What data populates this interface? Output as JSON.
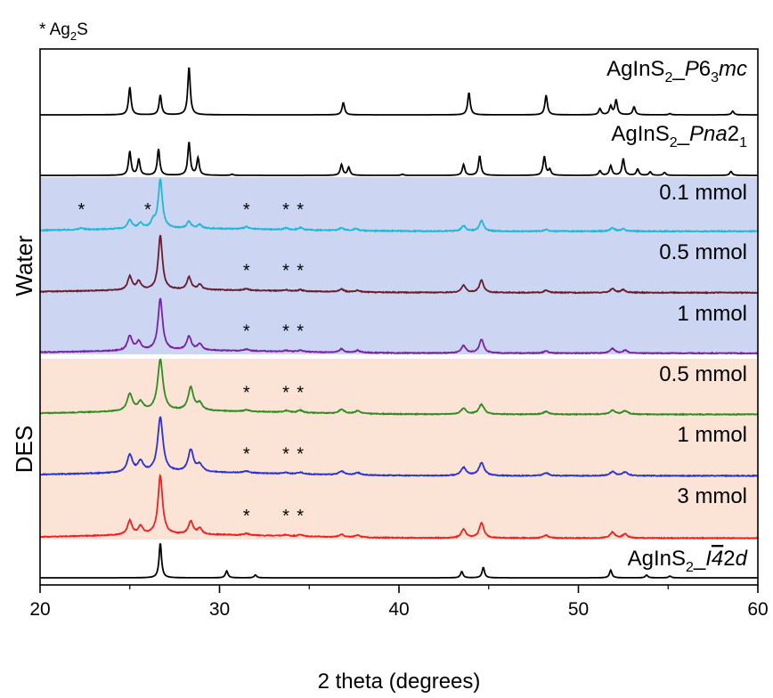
{
  "chart_data": {
    "type": "line",
    "xlabel": "2 theta (degrees)",
    "ylabel": "",
    "xlim": [
      20,
      60
    ],
    "x_ticks": [
      "20",
      "30",
      "40",
      "50",
      "60"
    ],
    "y_ticks_shown": false,
    "grid": false,
    "legend": {
      "note": "* Ag",
      "note_sub": "2",
      "note_tail": "S"
    },
    "groups": [
      {
        "name": "Water",
        "color": "#ccd6f2",
        "series": [
          "water_01",
          "water_05",
          "water_1"
        ]
      },
      {
        "name": "DES",
        "color": "#fbe4d5",
        "series": [
          "des_05",
          "des_1",
          "des_3"
        ]
      }
    ],
    "series": [
      {
        "id": "ref_p63mc",
        "label_parts": [
          [
            "AgInS",
            "n"
          ],
          [
            "2",
            "sub"
          ],
          [
            "_",
            "n"
          ],
          [
            "P",
            "i"
          ],
          [
            "6",
            "n"
          ],
          [
            "3",
            "sub"
          ],
          [
            "mc",
            "i"
          ]
        ],
        "color": "#000000",
        "background": 0,
        "noise": 0,
        "peak_width": 0.13,
        "peaks": [
          [
            25.0,
            0.45
          ],
          [
            26.7,
            0.32
          ],
          [
            28.3,
            0.78
          ],
          [
            36.9,
            0.2
          ],
          [
            43.9,
            0.36
          ],
          [
            48.2,
            0.32
          ],
          [
            51.2,
            0.1
          ],
          [
            51.8,
            0.14
          ],
          [
            52.1,
            0.24
          ],
          [
            53.1,
            0.13
          ],
          [
            55.1,
            0.02
          ],
          [
            58.6,
            0.06
          ]
        ],
        "stars": []
      },
      {
        "id": "ref_pna21",
        "label_parts": [
          [
            "AgInS",
            "n"
          ],
          [
            "2",
            "sub"
          ],
          [
            "_",
            "n"
          ],
          [
            "Pna",
            "i"
          ],
          [
            "2",
            "n"
          ],
          [
            "1",
            "sub"
          ]
        ],
        "color": "#000000",
        "background": 0,
        "noise": 0,
        "peak_width": 0.13,
        "peaks": [
          [
            25.0,
            0.42
          ],
          [
            25.5,
            0.28
          ],
          [
            26.6,
            0.46
          ],
          [
            28.3,
            0.58
          ],
          [
            28.8,
            0.3
          ],
          [
            30.7,
            0.02
          ],
          [
            36.8,
            0.19
          ],
          [
            37.2,
            0.14
          ],
          [
            40.2,
            0.02
          ],
          [
            43.6,
            0.19
          ],
          [
            44.5,
            0.34
          ],
          [
            48.1,
            0.33
          ],
          [
            48.4,
            0.1
          ],
          [
            51.2,
            0.08
          ],
          [
            51.8,
            0.17
          ],
          [
            52.5,
            0.29
          ],
          [
            53.3,
            0.11
          ],
          [
            54.0,
            0.06
          ],
          [
            54.8,
            0.05
          ],
          [
            58.5,
            0.07
          ]
        ],
        "stars": []
      },
      {
        "id": "water_01",
        "label_parts": [
          [
            "0.1 mmol",
            "n"
          ]
        ],
        "color": "#1fb7d6",
        "background": 0.05,
        "noise": 0.018,
        "peak_width": 0.22,
        "peaks": [
          [
            22.3,
            0.03
          ],
          [
            25.0,
            0.16
          ],
          [
            25.6,
            0.1
          ],
          [
            26.3,
            0.12
          ],
          [
            26.7,
            0.88
          ],
          [
            28.3,
            0.12
          ],
          [
            28.9,
            0.07
          ],
          [
            31.5,
            0.04
          ],
          [
            33.7,
            0.03
          ],
          [
            34.5,
            0.04
          ],
          [
            36.8,
            0.05
          ],
          [
            37.6,
            0.04
          ],
          [
            43.6,
            0.1
          ],
          [
            44.6,
            0.19
          ],
          [
            48.2,
            0.03
          ],
          [
            51.9,
            0.06
          ],
          [
            52.5,
            0.04
          ]
        ],
        "stars": [
          22.3,
          26.0,
          31.5,
          33.7,
          34.5
        ]
      },
      {
        "id": "water_05",
        "label_parts": [
          [
            "0.5 mmol",
            "n"
          ]
        ],
        "color": "#6b1a2e",
        "background": 0.05,
        "noise": 0.015,
        "peak_width": 0.22,
        "peaks": [
          [
            25.0,
            0.24
          ],
          [
            25.5,
            0.15
          ],
          [
            26.7,
            0.95
          ],
          [
            28.3,
            0.22
          ],
          [
            28.9,
            0.09
          ],
          [
            31.5,
            0.03
          ],
          [
            33.7,
            0.02
          ],
          [
            34.5,
            0.03
          ],
          [
            36.8,
            0.05
          ],
          [
            37.7,
            0.03
          ],
          [
            43.6,
            0.13
          ],
          [
            44.6,
            0.22
          ],
          [
            48.2,
            0.04
          ],
          [
            51.9,
            0.07
          ],
          [
            52.5,
            0.05
          ]
        ],
        "stars": [
          31.5,
          33.7,
          34.5
        ]
      },
      {
        "id": "water_1",
        "label_parts": [
          [
            "1 mmol",
            "n"
          ]
        ],
        "color": "#7a1fa8",
        "background": 0.05,
        "noise": 0.015,
        "peak_width": 0.24,
        "peaks": [
          [
            25.0,
            0.26
          ],
          [
            25.5,
            0.15
          ],
          [
            26.7,
            0.92
          ],
          [
            28.3,
            0.25
          ],
          [
            28.9,
            0.11
          ],
          [
            31.5,
            0.03
          ],
          [
            33.7,
            0.02
          ],
          [
            34.5,
            0.03
          ],
          [
            36.8,
            0.06
          ],
          [
            37.7,
            0.04
          ],
          [
            43.6,
            0.13
          ],
          [
            44.6,
            0.24
          ],
          [
            48.2,
            0.04
          ],
          [
            51.9,
            0.08
          ],
          [
            52.6,
            0.05
          ]
        ],
        "stars": [
          31.5,
          33.7,
          34.5
        ]
      },
      {
        "id": "des_05",
        "label_parts": [
          [
            "0.5 mmol",
            "n"
          ]
        ],
        "color": "#2e8b1f",
        "background": 0.06,
        "noise": 0.014,
        "peak_width": 0.28,
        "peaks": [
          [
            25.0,
            0.3
          ],
          [
            25.6,
            0.15
          ],
          [
            26.7,
            0.9
          ],
          [
            28.4,
            0.4
          ],
          [
            28.9,
            0.12
          ],
          [
            31.5,
            0.03
          ],
          [
            33.7,
            0.03
          ],
          [
            34.5,
            0.04
          ],
          [
            36.8,
            0.07
          ],
          [
            37.7,
            0.05
          ],
          [
            43.6,
            0.1
          ],
          [
            44.6,
            0.17
          ],
          [
            48.2,
            0.05
          ],
          [
            51.9,
            0.07
          ],
          [
            52.6,
            0.06
          ]
        ],
        "stars": [
          31.5,
          33.7,
          34.5
        ]
      },
      {
        "id": "des_1",
        "label_parts": [
          [
            "1 mmol",
            "n"
          ]
        ],
        "color": "#2a2fd6",
        "background": 0.06,
        "noise": 0.014,
        "peak_width": 0.28,
        "peaks": [
          [
            25.0,
            0.3
          ],
          [
            25.6,
            0.18
          ],
          [
            26.7,
            0.95
          ],
          [
            28.4,
            0.38
          ],
          [
            28.9,
            0.12
          ],
          [
            31.5,
            0.03
          ],
          [
            33.7,
            0.02
          ],
          [
            34.5,
            0.03
          ],
          [
            36.8,
            0.06
          ],
          [
            37.7,
            0.04
          ],
          [
            43.6,
            0.14
          ],
          [
            44.6,
            0.22
          ],
          [
            48.2,
            0.05
          ],
          [
            51.9,
            0.07
          ],
          [
            52.6,
            0.06
          ]
        ],
        "stars": [
          31.5,
          33.7,
          34.5
        ]
      },
      {
        "id": "des_3",
        "label_parts": [
          [
            "3 mmol",
            "n"
          ]
        ],
        "color": "#ee2020",
        "background": 0.06,
        "noise": 0.014,
        "peak_width": 0.24,
        "peaks": [
          [
            25.0,
            0.24
          ],
          [
            25.6,
            0.14
          ],
          [
            26.7,
            1.0
          ],
          [
            28.4,
            0.22
          ],
          [
            28.9,
            0.1
          ],
          [
            31.5,
            0.03
          ],
          [
            33.7,
            0.02
          ],
          [
            34.5,
            0.03
          ],
          [
            36.8,
            0.05
          ],
          [
            37.7,
            0.04
          ],
          [
            43.6,
            0.15
          ],
          [
            44.6,
            0.26
          ],
          [
            48.2,
            0.05
          ],
          [
            51.9,
            0.1
          ],
          [
            52.6,
            0.07
          ]
        ],
        "stars": [
          31.5,
          33.7,
          34.5
        ]
      },
      {
        "id": "ref_i42d",
        "label_parts": [
          [
            "AgInS",
            "n"
          ],
          [
            "2",
            "sub"
          ],
          [
            "_",
            "n"
          ],
          [
            "I",
            "i"
          ],
          [
            "4",
            "ib"
          ],
          [
            "2",
            "n"
          ],
          [
            "d",
            "i"
          ]
        ],
        "color": "#000000",
        "background": 0,
        "noise": 0,
        "peak_width": 0.13,
        "peaks": [
          [
            26.7,
            1.0
          ],
          [
            30.4,
            0.2
          ],
          [
            32.0,
            0.08
          ],
          [
            43.5,
            0.18
          ],
          [
            44.7,
            0.3
          ],
          [
            51.8,
            0.22
          ],
          [
            53.8,
            0.08
          ],
          [
            55.1,
            0.05
          ]
        ],
        "stars": []
      }
    ]
  }
}
